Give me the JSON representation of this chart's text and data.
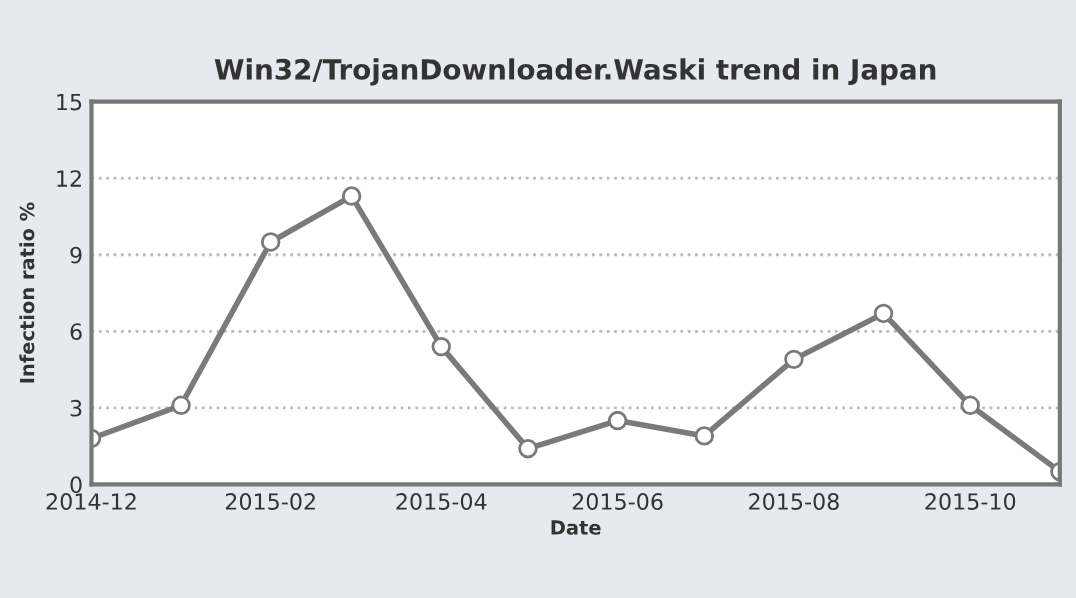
{
  "chart_data": {
    "type": "line",
    "title": "Win32/TrojanDownloader.Waski trend in Japan",
    "xlabel": "Date",
    "ylabel": "Infection ratio %",
    "x": [
      "2014-12",
      "2015-01",
      "2015-02",
      "2015-03",
      "2015-04",
      "2015-05",
      "2015-06",
      "2015-07",
      "2015-08",
      "2015-09",
      "2015-10",
      "2015-11"
    ],
    "series": [
      {
        "color": "#7a7a7a",
        "values": [
          1.8,
          3.1,
          9.5,
          11.3,
          5.4,
          1.4,
          2.5,
          1.9,
          4.9,
          6.7,
          3.1,
          0.5
        ]
      }
    ],
    "xlim": [
      "2014-12",
      "2015-11"
    ],
    "xticks": [
      {
        "value": "2014-12",
        "label": "2014-12"
      },
      {
        "value": "2015-02",
        "label": "2015-02"
      },
      {
        "value": "2015-04",
        "label": "2015-04"
      },
      {
        "value": "2015-06",
        "label": "2015-06"
      },
      {
        "value": "2015-08",
        "label": "2015-08"
      },
      {
        "value": "2015-10",
        "label": "2015-10"
      }
    ],
    "ylim": [
      0,
      15
    ],
    "yticks": [
      0,
      3,
      6,
      9,
      12,
      15
    ],
    "grid": "y",
    "marker": "circle",
    "line_style": "solid"
  }
}
